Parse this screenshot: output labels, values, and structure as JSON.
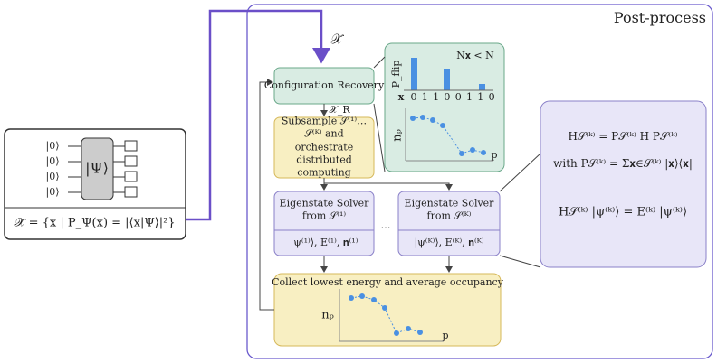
{
  "title": "Post-process",
  "input": {
    "qubits": [
      "|0⟩",
      "|0⟩",
      "|0⟩",
      "|0⟩"
    ],
    "state": "|Ψ⟩",
    "formula": "𝒳̃ = {x | P_Ψ(x) = |⟨x|Ψ⟩|²}"
  },
  "flow": {
    "input_label": "𝒳̃",
    "recovery": "Configuration Recovery",
    "recovered_label": "𝒳_R",
    "subsample": "Subsample 𝒮⁽¹⁾…𝒮⁽ᴷ⁾ and orchestrate distributed computing",
    "solvers": [
      {
        "title": "Eigenstate Solver from 𝒮⁽¹⁾",
        "output": "|ψ⁽¹⁾⟩, E⁽¹⁾, 𝐧⁽¹⁾"
      },
      {
        "title": "Eigenstate Solver from 𝒮⁽ᴷ⁾",
        "output": "|ψ⁽ᴷ⁾⟩, E⁽ᴷ⁾, 𝐧⁽ᴷ⁾"
      }
    ],
    "ellipsis": "…",
    "collect": "Collect lowest energy and average occupancy",
    "collect_ylabel": "nₚ",
    "collect_xlabel": "p"
  },
  "flip_panel": {
    "ylabel": "P_flip",
    "condition": "N𝐱 < N",
    "x_label": "x",
    "bits": [
      0,
      1,
      1,
      0,
      0,
      1,
      1,
      0
    ],
    "occ_ylabel": "nₚ",
    "occ_xlabel": "p"
  },
  "equations": [
    "H𝒮⁽ᵏ⁾ = P𝒮⁽ᵏ⁾ H P𝒮⁽ᵏ⁾",
    "with P𝒮⁽ᵏ⁾ = Σ𝐱∈𝒮⁽ᵏ⁾ |𝐱⟩⟨𝐱|",
    "H𝒮⁽ᵏ⁾ |ψ⁽ᵏ⁾⟩ = E⁽ᵏ⁾ |ψ⁽ᵏ⁾⟩"
  ]
}
